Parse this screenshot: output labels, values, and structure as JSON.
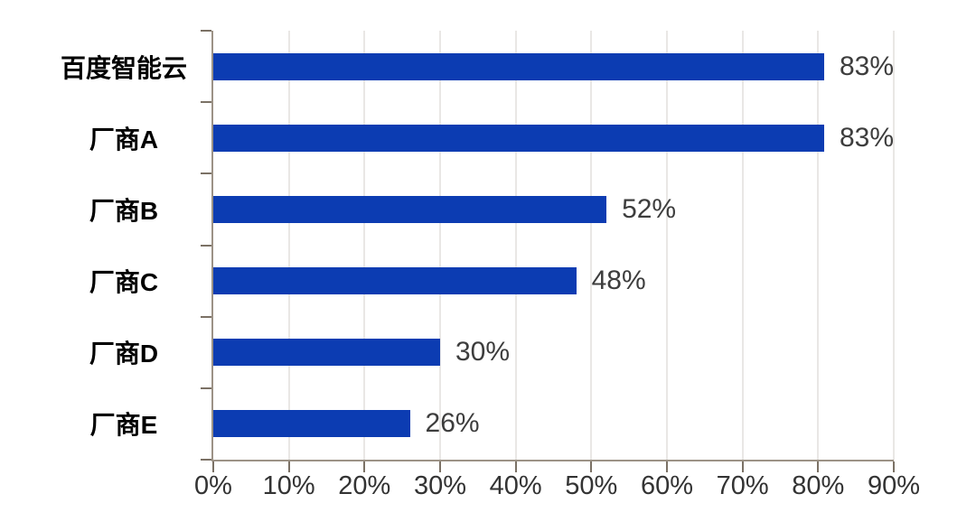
{
  "chart_data": {
    "type": "bar",
    "orientation": "horizontal",
    "title": "",
    "xlabel": "",
    "ylabel": "",
    "categories": [
      "百度智能云",
      "厂商A",
      "厂商B",
      "厂商C",
      "厂商D",
      "厂商E"
    ],
    "values": [
      83,
      83,
      52,
      48,
      30,
      26
    ],
    "value_labels": [
      "83%",
      "83%",
      "52%",
      "48%",
      "30%",
      "26%"
    ],
    "x_axis": {
      "min": 0,
      "max": 90,
      "tick_step": 10,
      "tick_labels": [
        "0%",
        "10%",
        "20%",
        "30%",
        "40%",
        "50%",
        "60%",
        "70%",
        "80%",
        "90%"
      ]
    },
    "grid": "vertical-gridlines-on",
    "legend": "none",
    "colors": {
      "bar": "#0c3cb2",
      "axis_line": "#9c9286",
      "tick": "#7b7165",
      "gridline": "#e9e7e5",
      "value_text": "#3d3d3d",
      "category_text": "#000000",
      "axis_label_text": "#333333",
      "background": "#ffffff"
    }
  }
}
